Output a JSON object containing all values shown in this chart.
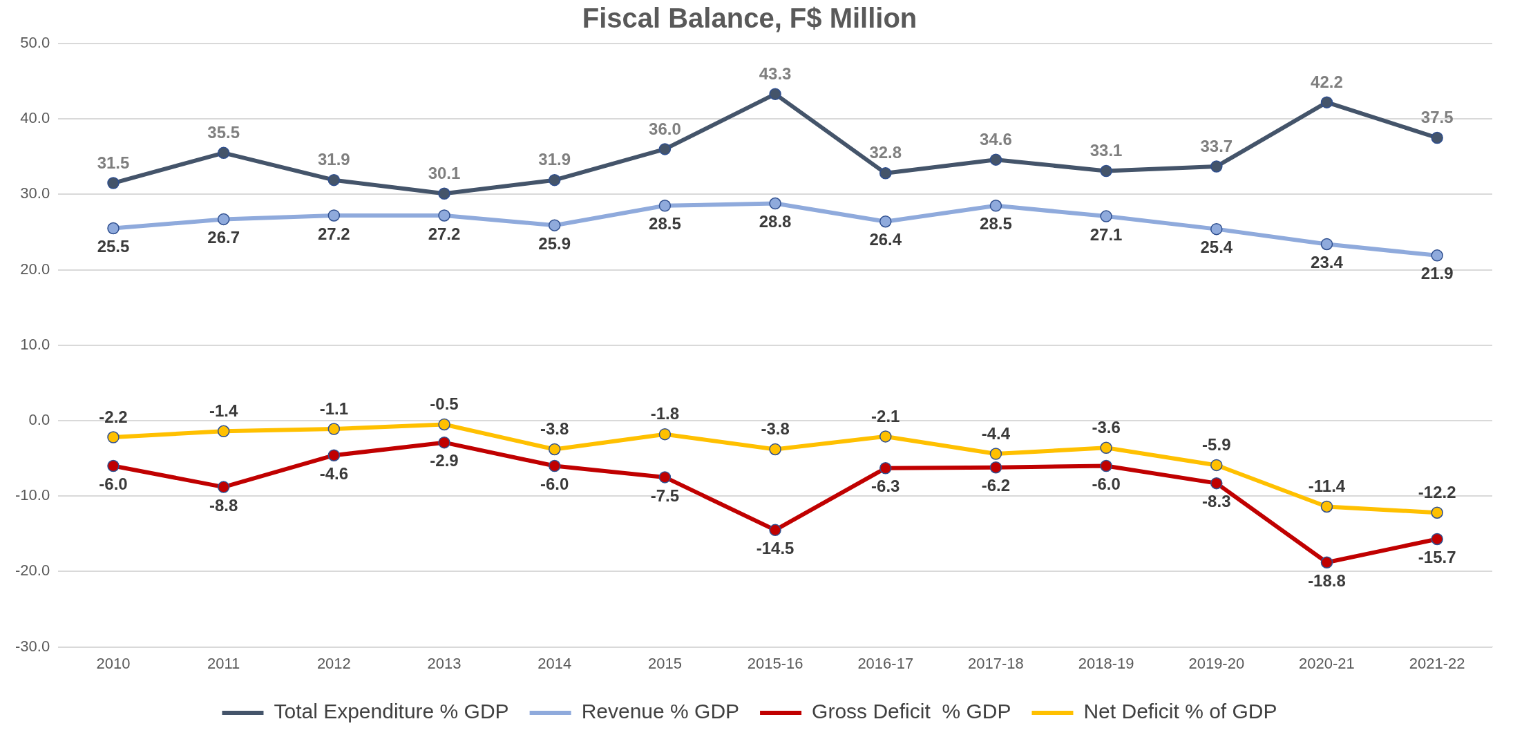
{
  "chart_data": {
    "type": "line",
    "title": "Fiscal Balance, F$ Million",
    "categories": [
      "2010",
      "2011",
      "2012",
      "2013",
      "2014",
      "2015",
      "2015-16",
      "2016-17",
      "2017-18",
      "2018-19",
      "2019-20",
      "2020-21",
      "2021-22"
    ],
    "series": [
      {
        "name": "Total Expenditure % GDP",
        "color": "#44546a",
        "values": [
          31.5,
          35.5,
          31.9,
          30.1,
          31.9,
          36.0,
          43.3,
          32.8,
          34.6,
          33.1,
          33.7,
          42.2,
          37.5
        ],
        "value_labels": [
          "31.5",
          "35.5",
          "31.9",
          "30.1",
          "31.9",
          "36.0",
          "43.3",
          "32.8",
          "34.6",
          "33.1",
          "33.7",
          "42.2",
          "37.5"
        ]
      },
      {
        "name": "Revenue % GDP",
        "color": "#8faadc",
        "values": [
          25.5,
          26.7,
          27.2,
          27.2,
          25.9,
          28.5,
          28.8,
          26.4,
          28.5,
          27.1,
          25.4,
          23.4,
          21.9
        ],
        "value_labels": [
          "25.5",
          "26.7",
          "27.2",
          "27.2",
          "25.9",
          "28.5",
          "28.8",
          "26.4",
          "28.5",
          "27.1",
          "25.4",
          "23.4",
          "21.9"
        ]
      },
      {
        "name": "Gross Deficit  % GDP",
        "color": "#c00000",
        "values": [
          -6.0,
          -8.8,
          -4.6,
          -2.9,
          -6.0,
          -7.5,
          -14.5,
          -6.3,
          -6.2,
          -6.0,
          -8.3,
          -18.8,
          -15.7
        ],
        "value_labels": [
          "-6.0",
          "-8.8",
          "-4.6",
          "-2.9",
          "-6.0",
          "-7.5",
          "-14.5",
          "-6.3",
          "-6.2",
          "-6.0",
          "-8.3",
          "-18.8",
          "-15.7"
        ]
      },
      {
        "name": "Net Deficit % of GDP",
        "color": "#ffc000",
        "values": [
          -2.2,
          -1.4,
          -1.1,
          -0.5,
          -3.8,
          -1.8,
          -3.8,
          -2.1,
          -4.4,
          -3.6,
          -5.9,
          -11.4,
          -12.2
        ],
        "value_labels": [
          "-2.2",
          "-1.4",
          "-1.1",
          "-0.5",
          "-3.8",
          "-1.8",
          "-3.8",
          "-2.1",
          "-4.4",
          "-3.6",
          "-5.9",
          "-11.4",
          "-12.2"
        ]
      }
    ],
    "ylim": [
      -30,
      50
    ],
    "yticks": [
      {
        "value": -30,
        "label": "-30.0"
      },
      {
        "value": -20,
        "label": "-20.0"
      },
      {
        "value": -10,
        "label": "-10.0"
      },
      {
        "value": 0,
        "label": "0.0"
      },
      {
        "value": 10,
        "label": "10.0"
      },
      {
        "value": 20,
        "label": "20.0"
      },
      {
        "value": 30,
        "label": "30.0"
      },
      {
        "value": 40,
        "label": "40.0"
      },
      {
        "value": 50,
        "label": "50.0"
      }
    ],
    "grid": "y",
    "legend": "bottom",
    "marker": "circle",
    "line_style": "solid",
    "data_labels": true
  }
}
